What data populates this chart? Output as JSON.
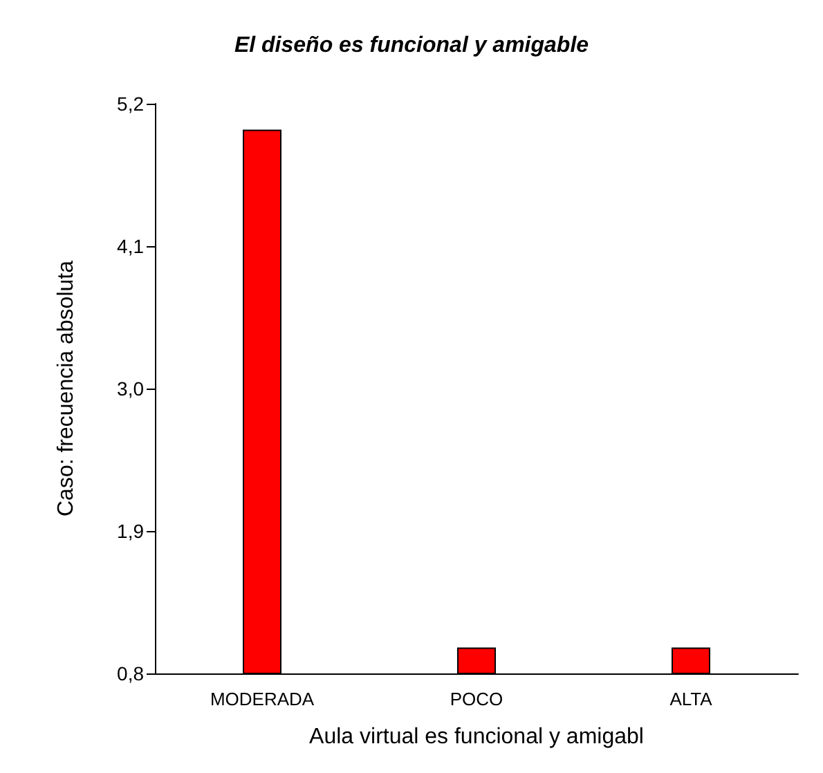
{
  "chart_data": {
    "type": "bar",
    "title": "El diseño es funcional y amigable",
    "xlabel": "Aula virtual es funcional y amigabl",
    "ylabel": "Caso: frecuencia absoluta",
    "categories": [
      "MODERADA",
      "POCO",
      "ALTA"
    ],
    "values": [
      5,
      1,
      1
    ],
    "color": "#ff0000",
    "ylim": [
      0.8,
      5.2
    ],
    "yticks": [
      {
        "value": 0.8,
        "label": "0,8"
      },
      {
        "value": 1.9,
        "label": "1,9"
      },
      {
        "value": 3.0,
        "label": "3,0"
      },
      {
        "value": 4.1,
        "label": "4,1"
      },
      {
        "value": 5.2,
        "label": "5,2"
      }
    ],
    "grid": false
  }
}
